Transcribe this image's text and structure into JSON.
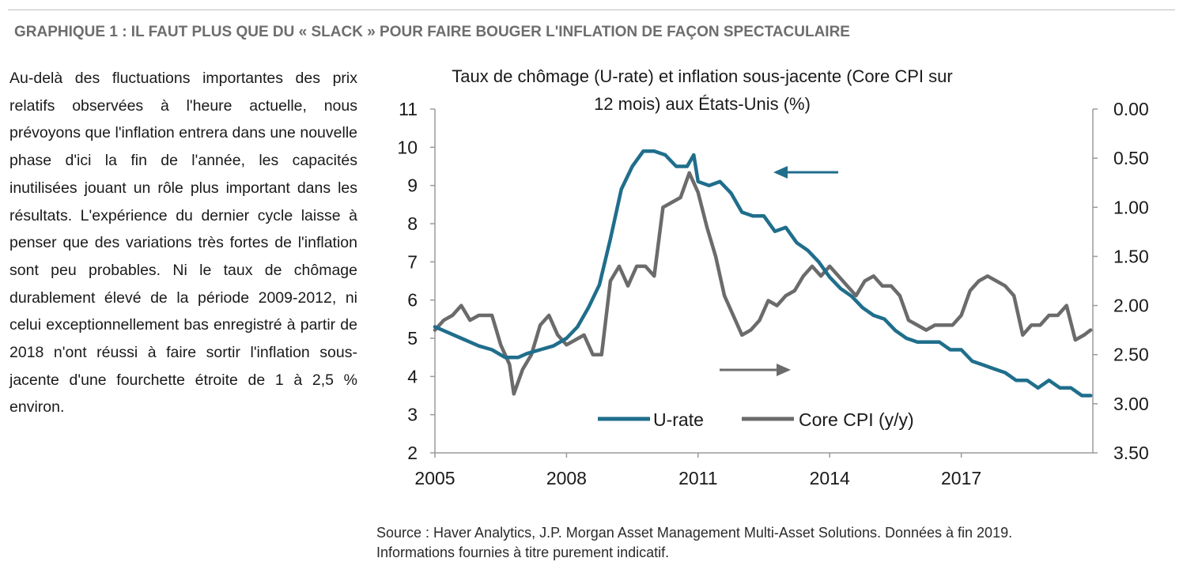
{
  "heading": "GRAPHIQUE 1 : IL FAUT PLUS QUE DU « SLACK » POUR FAIRE BOUGER L'INFLATION DE FAÇON SPECTACULAIRE",
  "body_text": "Au-delà des fluctuations importantes des prix relatifs observées à l'heure actuelle, nous prévoyons que l'inflation entrera dans une nouvelle phase d'ici la fin de l'année, les capacités inutilisées jouant un rôle plus important dans les résultats. L'expérience du dernier cycle laisse à penser que des variations très fortes de l'inflation sont peu probables. Ni le taux de chômage durablement élevé de la période 2009-2012, ni celui exceptionnellement bas enregistré à partir de 2018 n'ont réussi à faire sortir l'inflation sous-jacente d'une fourchette étroite de 1 à 2,5 % environ.",
  "source": {
    "line1": "Source : Haver Analytics, J.P. Morgan Asset Management Multi-Asset Solutions. Données à fin 2019.",
    "line2": "Informations fournies à titre purement indicatif."
  },
  "chart_data": {
    "type": "line",
    "title_line1": "Taux de chômage (U-rate) et inflation sous-jacente (Core CPI sur",
    "title_line2": "12 mois) aux États-Unis (%)",
    "x_range": [
      2005.0,
      2020.0
    ],
    "x_ticks": [
      "2005",
      "2008",
      "2011",
      "2014",
      "2017"
    ],
    "y_left": {
      "range": [
        2,
        11
      ],
      "ticks": [
        "2",
        "3",
        "4",
        "5",
        "6",
        "7",
        "8",
        "9",
        "10",
        "11"
      ]
    },
    "y_right": {
      "range": [
        3.5,
        0.0
      ],
      "inverted": true,
      "ticks": [
        "0.00",
        "0.50",
        "1.00",
        "1.50",
        "2.00",
        "2.50",
        "3.00",
        "3.50"
      ]
    },
    "grid": false,
    "legend_position": "bottom-center",
    "series": [
      {
        "name": "U-rate",
        "axis": "left",
        "color": "#1f6e8c",
        "x": [
          2005.0,
          2005.2,
          2005.4,
          2005.6,
          2005.8,
          2006.0,
          2006.3,
          2006.6,
          2006.9,
          2007.1,
          2007.4,
          2007.7,
          2008.0,
          2008.25,
          2008.5,
          2008.75,
          2009.0,
          2009.25,
          2009.5,
          2009.75,
          2010.0,
          2010.25,
          2010.5,
          2010.75,
          2010.9,
          2011.0,
          2011.25,
          2011.5,
          2011.75,
          2012.0,
          2012.25,
          2012.5,
          2012.75,
          2013.0,
          2013.25,
          2013.5,
          2013.75,
          2014.0,
          2014.25,
          2014.5,
          2014.75,
          2015.0,
          2015.25,
          2015.5,
          2015.75,
          2016.0,
          2016.25,
          2016.5,
          2016.75,
          2017.0,
          2017.25,
          2017.5,
          2017.75,
          2018.0,
          2018.25,
          2018.5,
          2018.75,
          2019.0,
          2019.25,
          2019.5,
          2019.75,
          2019.95
        ],
        "values": [
          5.3,
          5.2,
          5.1,
          5.0,
          4.9,
          4.8,
          4.7,
          4.5,
          4.5,
          4.6,
          4.7,
          4.8,
          5.0,
          5.3,
          5.8,
          6.4,
          7.6,
          8.9,
          9.5,
          9.9,
          9.9,
          9.8,
          9.5,
          9.5,
          9.8,
          9.1,
          9.0,
          9.1,
          8.8,
          8.3,
          8.2,
          8.2,
          7.8,
          7.9,
          7.5,
          7.3,
          7.0,
          6.6,
          6.3,
          6.1,
          5.8,
          5.6,
          5.5,
          5.2,
          5.0,
          4.9,
          4.9,
          4.9,
          4.7,
          4.7,
          4.4,
          4.3,
          4.2,
          4.1,
          3.9,
          3.9,
          3.7,
          3.9,
          3.7,
          3.7,
          3.5,
          3.5
        ]
      },
      {
        "name": "Core CPI (y/y)",
        "axis": "right",
        "color": "#6b6b6b",
        "x": [
          2005.0,
          2005.2,
          2005.4,
          2005.6,
          2005.8,
          2006.0,
          2006.3,
          2006.5,
          2006.7,
          2006.8,
          2007.0,
          2007.2,
          2007.4,
          2007.6,
          2007.8,
          2008.0,
          2008.2,
          2008.4,
          2008.6,
          2008.8,
          2009.0,
          2009.2,
          2009.4,
          2009.6,
          2009.8,
          2010.0,
          2010.2,
          2010.4,
          2010.6,
          2010.8,
          2011.0,
          2011.2,
          2011.4,
          2011.6,
          2011.8,
          2012.0,
          2012.2,
          2012.4,
          2012.6,
          2012.8,
          2013.0,
          2013.2,
          2013.4,
          2013.6,
          2013.8,
          2014.0,
          2014.2,
          2014.4,
          2014.6,
          2014.8,
          2015.0,
          2015.2,
          2015.4,
          2015.6,
          2015.8,
          2016.0,
          2016.2,
          2016.4,
          2016.6,
          2016.8,
          2017.0,
          2017.2,
          2017.4,
          2017.6,
          2017.8,
          2018.0,
          2018.2,
          2018.4,
          2018.6,
          2018.8,
          2019.0,
          2019.2,
          2019.4,
          2019.6,
          2019.8,
          2019.95
        ],
        "values": [
          2.25,
          2.15,
          2.1,
          2.0,
          2.15,
          2.1,
          2.1,
          2.4,
          2.6,
          2.9,
          2.65,
          2.5,
          2.2,
          2.1,
          2.3,
          2.4,
          2.35,
          2.3,
          2.5,
          2.5,
          1.75,
          1.6,
          1.8,
          1.6,
          1.6,
          1.7,
          1.0,
          0.95,
          0.9,
          0.65,
          0.85,
          1.2,
          1.5,
          1.9,
          2.1,
          2.3,
          2.25,
          2.15,
          1.95,
          2.0,
          1.9,
          1.85,
          1.7,
          1.6,
          1.7,
          1.6,
          1.7,
          1.8,
          1.9,
          1.75,
          1.7,
          1.8,
          1.8,
          1.9,
          2.15,
          2.2,
          2.25,
          2.2,
          2.2,
          2.2,
          2.1,
          1.85,
          1.75,
          1.7,
          1.75,
          1.8,
          1.9,
          2.3,
          2.2,
          2.2,
          2.1,
          2.1,
          2.0,
          2.35,
          2.3,
          2.25
        ]
      }
    ],
    "annotations": [
      {
        "type": "arrow",
        "direction": "left",
        "meaning": "U-rate on left axis"
      },
      {
        "type": "arrow",
        "direction": "right",
        "meaning": "Core CPI on right axis"
      }
    ]
  }
}
